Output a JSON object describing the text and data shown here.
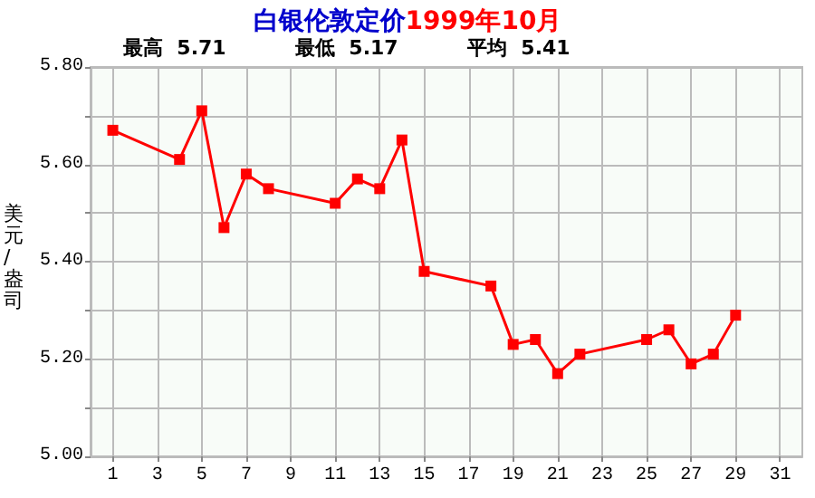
{
  "chart_data": {
    "type": "line",
    "title": "白银伦敦定价1999年10月",
    "annotations": [
      "最高  5.71",
      "最低  5.17",
      "平均  5.41"
    ],
    "ylabel": "美元/盎司",
    "x": [
      1,
      4,
      5,
      6,
      7,
      8,
      11,
      12,
      13,
      14,
      15,
      18,
      19,
      20,
      21,
      22,
      25,
      26,
      27,
      28,
      29
    ],
    "series": [
      {
        "color": "#ff0000",
        "values": [
          5.67,
          5.61,
          5.71,
          5.47,
          5.58,
          5.55,
          5.52,
          5.57,
          5.55,
          5.65,
          5.38,
          5.35,
          5.23,
          5.24,
          5.17,
          5.21,
          5.24,
          5.26,
          5.19,
          5.21,
          5.29
        ]
      }
    ],
    "xlim": [
      0,
      32
    ],
    "xticks": [
      1,
      3,
      5,
      7,
      9,
      11,
      13,
      15,
      17,
      19,
      21,
      23,
      25,
      27,
      29,
      31
    ],
    "ylim": [
      5.0,
      5.8
    ],
    "yticks": [
      {
        "value": 5.0,
        "label": "5.00"
      },
      {
        "value": 5.1,
        "label": null
      },
      {
        "value": 5.2,
        "label": "5.20"
      },
      {
        "value": 5.3,
        "label": null
      },
      {
        "value": 5.4,
        "label": "5.40"
      },
      {
        "value": 5.5,
        "label": null
      },
      {
        "value": 5.6,
        "label": "5.60"
      },
      {
        "value": 5.7,
        "label": null
      },
      {
        "value": 5.8,
        "label": "5.80"
      }
    ],
    "grid": true,
    "marker": "square",
    "line_style": "solid"
  }
}
